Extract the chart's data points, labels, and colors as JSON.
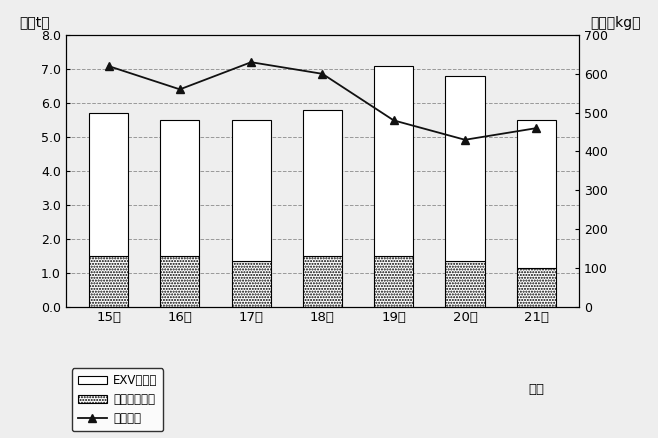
{
  "years": [
    "15年",
    "16年",
    "17年",
    "18年",
    "19年",
    "20年",
    "21年"
  ],
  "year_last_extra": "予想",
  "exv_total": [
    5.7,
    5.5,
    5.5,
    5.8,
    7.1,
    6.8,
    5.5
  ],
  "pure_oil": [
    1.5,
    1.5,
    1.35,
    1.5,
    1.5,
    1.35,
    1.15
  ],
  "unit_price": [
    620,
    560,
    630,
    600,
    480,
    430,
    460
  ],
  "left_ylim": [
    0,
    8.0
  ],
  "right_ylim": [
    0,
    700
  ],
  "left_yticks": [
    0.0,
    1.0,
    2.0,
    3.0,
    4.0,
    5.0,
    6.0,
    7.0,
    8.0
  ],
  "right_yticks": [
    0,
    100,
    200,
    300,
    400,
    500,
    600,
    700
  ],
  "left_ylabel": "（万t）",
  "right_ylabel": "（円／kg）",
  "bar_width": 0.55,
  "line_color": "#111111",
  "grid_color": "#999999",
  "fig_bg": "#eeeeee",
  "legend_labels": [
    "EXVオイル",
    "ピュアオイル",
    "平均単価"
  ]
}
